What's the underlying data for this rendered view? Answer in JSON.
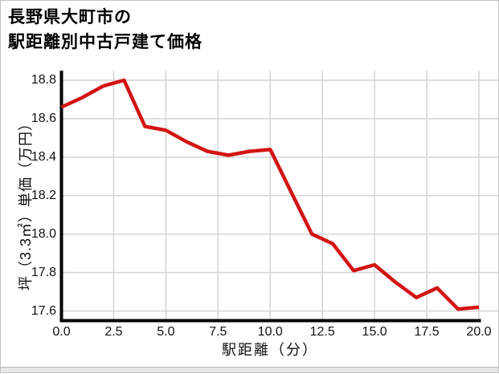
{
  "title": {
    "line1": "長野県大町市の",
    "line2": "駅距離別中古戸建て価格"
  },
  "chart_data": {
    "type": "line",
    "title": "長野県大町市の駅距離別中古戸建て価格",
    "xlabel": "駅距離（分）",
    "ylabel": "坪（3.3㎡）単価（万円）",
    "x": [
      0,
      1,
      2,
      3,
      4,
      5,
      6,
      7,
      8,
      9,
      10,
      11,
      12,
      13,
      14,
      15,
      16,
      17,
      18,
      19,
      20
    ],
    "values": [
      18.66,
      18.71,
      18.77,
      18.8,
      18.56,
      18.54,
      18.48,
      18.43,
      18.41,
      18.43,
      18.44,
      18.22,
      18.0,
      17.95,
      17.81,
      17.84,
      17.75,
      17.67,
      17.72,
      17.61,
      17.62
    ],
    "xlim": [
      0,
      20
    ],
    "ylim": [
      17.55,
      18.85
    ],
    "x_ticks": [
      0,
      2.5,
      5,
      7.5,
      10,
      12.5,
      15,
      17.5,
      20
    ],
    "x_tick_labels": [
      "0.0",
      "2.5",
      "5.0",
      "7.5",
      "10.0",
      "12.5",
      "15.0",
      "17.5",
      "20.0"
    ],
    "y_ticks": [
      18.8,
      18.6,
      18.4,
      18.2,
      18.0,
      17.8,
      17.6
    ],
    "y_tick_labels": [
      "18.8",
      "18.6",
      "18.4",
      "18.2",
      "18.0",
      "17.8",
      "17.6"
    ],
    "grid": true,
    "legend": "none",
    "line_color": "#d21414",
    "line_width": 4.5
  },
  "colors": {
    "background": "#ffffff",
    "grid": "#d6d6d6",
    "axis": "#000000",
    "text": "#111111",
    "frame_border": "#c3c3c3",
    "bottom_strip": "#e7e7e7"
  }
}
